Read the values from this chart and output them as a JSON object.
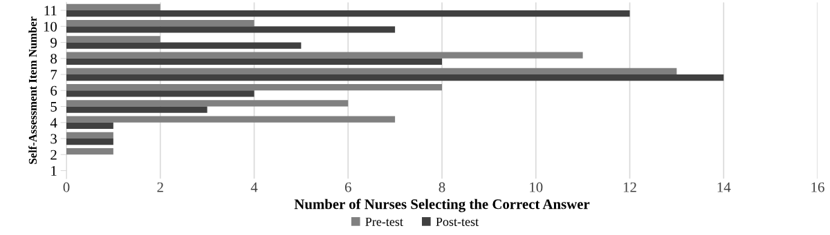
{
  "chart_data": {
    "type": "bar",
    "orientation": "horizontal",
    "xlabel": "Number of Nurses Selecting the Correct Answer",
    "ylabel": "Self-Assessment Item Number",
    "categories": [
      "11",
      "10",
      "9",
      "8",
      "7",
      "6",
      "5",
      "4",
      "3",
      "2",
      "1"
    ],
    "series": [
      {
        "name": "Pre-test",
        "color": "#808080",
        "values": [
          2,
          4,
          2,
          11,
          13,
          8,
          6,
          7,
          1,
          1,
          0
        ]
      },
      {
        "name": "Post-test",
        "color": "#404040",
        "values": [
          12,
          7,
          5,
          8,
          14,
          4,
          3,
          1,
          1,
          0,
          0
        ]
      }
    ],
    "xlim": [
      0,
      16
    ],
    "xticks": [
      0,
      2,
      4,
      6,
      8,
      10,
      12,
      14,
      16
    ],
    "grid": "x",
    "legend": "bottom"
  }
}
